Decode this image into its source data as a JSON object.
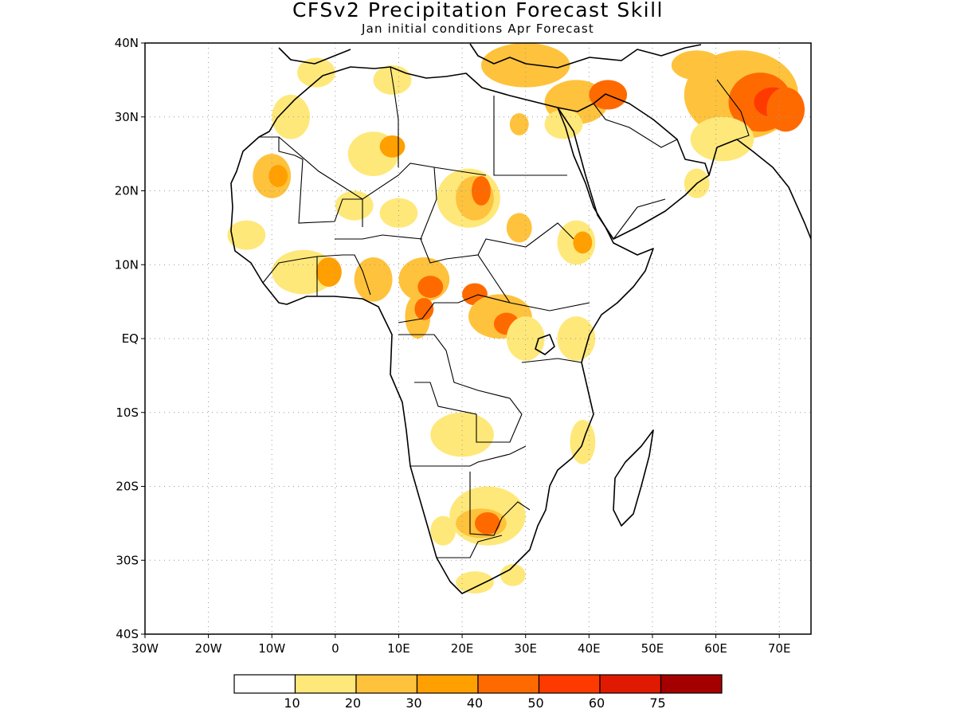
{
  "title": "CFSv2 Precipitation Forecast Skill",
  "subtitle": "Jan initial conditions  Apr Forecast",
  "map": {
    "lon_range": [
      -30,
      75
    ],
    "lat_range": [
      -40,
      40
    ],
    "grid": "dotted",
    "lat_ticks": [
      {
        "value": 40,
        "label": "40N"
      },
      {
        "value": 30,
        "label": "30N"
      },
      {
        "value": 20,
        "label": "20N"
      },
      {
        "value": 10,
        "label": "10N"
      },
      {
        "value": 0,
        "label": "EQ"
      },
      {
        "value": -10,
        "label": "10S"
      },
      {
        "value": -20,
        "label": "20S"
      },
      {
        "value": -30,
        "label": "30S"
      },
      {
        "value": -40,
        "label": "40S"
      }
    ],
    "lon_ticks": [
      {
        "value": -30,
        "label": "30W"
      },
      {
        "value": -20,
        "label": "20W"
      },
      {
        "value": -10,
        "label": "10W"
      },
      {
        "value": 0,
        "label": "0"
      },
      {
        "value": 10,
        "label": "10E"
      },
      {
        "value": 20,
        "label": "20E"
      },
      {
        "value": 30,
        "label": "30E"
      },
      {
        "value": 40,
        "label": "40E"
      },
      {
        "value": 50,
        "label": "50E"
      },
      {
        "value": 60,
        "label": "60E"
      },
      {
        "value": 70,
        "label": "70E"
      }
    ]
  },
  "colorbar": {
    "colors": [
      "#ffffff",
      "#ffe87a",
      "#ffc23c",
      "#ffa000",
      "#ff6a00",
      "#ff3a00",
      "#e01a00",
      "#a50000"
    ],
    "labels": [
      "10",
      "20",
      "30",
      "40",
      "50",
      "60",
      "75"
    ]
  },
  "skill_patches": [
    {
      "lon": -3,
      "lat": 36,
      "rlon": 3,
      "rlat": 2,
      "level": 1
    },
    {
      "lon": 9,
      "lat": 35,
      "rlon": 3,
      "rlat": 2,
      "level": 1
    },
    {
      "lon": 30,
      "lat": 37,
      "rlon": 7,
      "rlat": 3,
      "level": 2
    },
    {
      "lon": 38,
      "lat": 32,
      "rlon": 5,
      "rlat": 3,
      "level": 2
    },
    {
      "lon": 43,
      "lat": 33,
      "rlon": 3,
      "rlat": 2,
      "level": 4
    },
    {
      "lon": 36,
      "lat": 29,
      "rlon": 3,
      "rlat": 2,
      "level": 1
    },
    {
      "lon": 64,
      "lat": 33,
      "rlon": 9,
      "rlat": 6,
      "level": 2
    },
    {
      "lon": 67,
      "lat": 32,
      "rlon": 5,
      "rlat": 4,
      "level": 4
    },
    {
      "lon": 69,
      "lat": 32,
      "rlon": 3,
      "rlat": 2,
      "level": 5
    },
    {
      "lon": 71,
      "lat": 31,
      "rlon": 3,
      "rlat": 3,
      "level": 4
    },
    {
      "lon": 57,
      "lat": 37,
      "rlon": 4,
      "rlat": 2,
      "level": 2
    },
    {
      "lon": 61,
      "lat": 27,
      "rlon": 5,
      "rlat": 3,
      "level": 1
    },
    {
      "lon": 57,
      "lat": 21,
      "rlon": 2,
      "rlat": 2,
      "level": 1
    },
    {
      "lon": -7,
      "lat": 30,
      "rlon": 3,
      "rlat": 3,
      "level": 1
    },
    {
      "lon": -10,
      "lat": 22,
      "rlon": 3,
      "rlat": 3,
      "level": 2
    },
    {
      "lon": -9,
      "lat": 22,
      "rlon": 1.5,
      "rlat": 1.5,
      "level": 3
    },
    {
      "lon": 6,
      "lat": 25,
      "rlon": 4,
      "rlat": 3,
      "level": 1
    },
    {
      "lon": 9,
      "lat": 26,
      "rlon": 2,
      "rlat": 1.5,
      "level": 3
    },
    {
      "lon": 3,
      "lat": 18,
      "rlon": 3,
      "rlat": 2,
      "level": 1
    },
    {
      "lon": 10,
      "lat": 17,
      "rlon": 3,
      "rlat": 2,
      "level": 1
    },
    {
      "lon": 21,
      "lat": 19,
      "rlon": 5,
      "rlat": 4,
      "level": 1
    },
    {
      "lon": 22,
      "lat": 19,
      "rlon": 3,
      "rlat": 3,
      "level": 2
    },
    {
      "lon": 23,
      "lat": 20,
      "rlon": 1.5,
      "rlat": 2,
      "level": 4
    },
    {
      "lon": 29,
      "lat": 15,
      "rlon": 2,
      "rlat": 2,
      "level": 2
    },
    {
      "lon": 29,
      "lat": 29,
      "rlon": 1.5,
      "rlat": 1.5,
      "level": 2
    },
    {
      "lon": -14,
      "lat": 14,
      "rlon": 3,
      "rlat": 2,
      "level": 1
    },
    {
      "lon": -5,
      "lat": 9,
      "rlon": 5,
      "rlat": 3,
      "level": 1
    },
    {
      "lon": -1,
      "lat": 9,
      "rlon": 2,
      "rlat": 2,
      "level": 3
    },
    {
      "lon": 6,
      "lat": 8,
      "rlon": 3,
      "rlat": 3,
      "level": 2
    },
    {
      "lon": 14,
      "lat": 8,
      "rlon": 4,
      "rlat": 3,
      "level": 2
    },
    {
      "lon": 15,
      "lat": 7,
      "rlon": 2,
      "rlat": 1.5,
      "level": 4
    },
    {
      "lon": 22,
      "lat": 6,
      "rlon": 2,
      "rlat": 1.5,
      "level": 4
    },
    {
      "lon": 26,
      "lat": 3,
      "rlon": 5,
      "rlat": 3,
      "level": 2
    },
    {
      "lon": 27,
      "lat": 2,
      "rlon": 2,
      "rlat": 1.5,
      "level": 4
    },
    {
      "lon": 13,
      "lat": 3,
      "rlon": 2,
      "rlat": 3,
      "level": 2
    },
    {
      "lon": 14,
      "lat": 4,
      "rlon": 1.5,
      "rlat": 1.5,
      "level": 4
    },
    {
      "lon": 30,
      "lat": 0,
      "rlon": 3,
      "rlat": 3,
      "level": 1
    },
    {
      "lon": 38,
      "lat": 0,
      "rlon": 3,
      "rlat": 3,
      "level": 1
    },
    {
      "lon": 38,
      "lat": 13,
      "rlon": 3,
      "rlat": 3,
      "level": 1
    },
    {
      "lon": 39,
      "lat": 13,
      "rlon": 1.5,
      "rlat": 1.5,
      "level": 3
    },
    {
      "lon": 20,
      "lat": -13,
      "rlon": 5,
      "rlat": 3,
      "level": 1
    },
    {
      "lon": 39,
      "lat": -14,
      "rlon": 2,
      "rlat": 3,
      "level": 1
    },
    {
      "lon": 24,
      "lat": -24,
      "rlon": 6,
      "rlat": 4,
      "level": 1
    },
    {
      "lon": 23,
      "lat": -25,
      "rlon": 4,
      "rlat": 2,
      "level": 2
    },
    {
      "lon": 24,
      "lat": -25,
      "rlon": 2,
      "rlat": 1.5,
      "level": 4
    },
    {
      "lon": 17,
      "lat": -26,
      "rlon": 2,
      "rlat": 2,
      "level": 1
    },
    {
      "lon": 28,
      "lat": -32,
      "rlon": 2,
      "rlat": 1.5,
      "level": 1
    },
    {
      "lon": 22,
      "lat": -33,
      "rlon": 3,
      "rlat": 1.5,
      "level": 1
    }
  ]
}
